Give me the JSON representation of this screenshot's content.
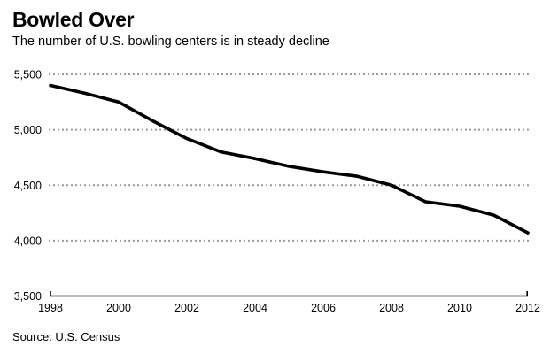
{
  "header": {
    "title": "Bowled Over",
    "subtitle": "The number of U.S. bowling centers is in steady decline"
  },
  "footer": {
    "source": "Source: U.S. Census"
  },
  "colors": {
    "line": "#000000",
    "gridline": "#9a9a9a",
    "axis": "#000000",
    "text": "#000000",
    "background": "#ffffff"
  },
  "chart_data": {
    "type": "line",
    "title": "Bowled Over",
    "subtitle": "The number of U.S. bowling centers is in steady decline",
    "source": "Source: U.S. Census",
    "x": [
      1998,
      1999,
      2000,
      2001,
      2002,
      2003,
      2004,
      2005,
      2006,
      2007,
      2008,
      2009,
      2010,
      2011,
      2012
    ],
    "values": [
      5400,
      5330,
      5250,
      5080,
      4920,
      4800,
      4740,
      4670,
      4620,
      4580,
      4500,
      4350,
      4310,
      4230,
      4070
    ],
    "series_name": "U.S. bowling centers",
    "xlabel": "",
    "ylabel": "",
    "xlim": [
      1998,
      2012
    ],
    "ylim": [
      3500,
      5500
    ],
    "xticks": [
      1998,
      2000,
      2002,
      2004,
      2006,
      2008,
      2010,
      2012
    ],
    "yticks": [
      3500,
      4000,
      4500,
      5000,
      5500
    ],
    "ytick_labels": [
      "3,500",
      "4,000",
      "4,500",
      "5,000",
      "5,500"
    ],
    "grid": "horizontal dotted gridlines at y ticks; solid black baseline x-axis with end ticks",
    "legend": "none"
  }
}
